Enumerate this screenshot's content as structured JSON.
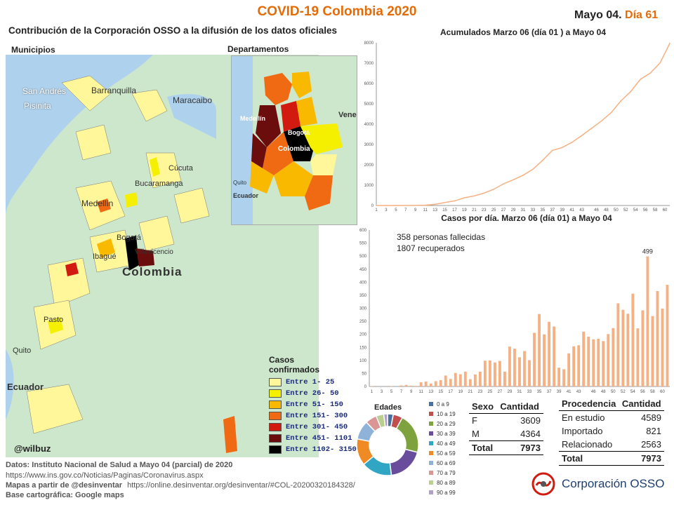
{
  "header": {
    "title": "COVID-19 Colombia 2020",
    "date_label": "Mayo 04.",
    "day_label": "Día 61",
    "subtitle": "Contribución de la Corporación OSSO a la difusión de los datos oficiales"
  },
  "maps": {
    "municipios_label": "Municipios",
    "departamentos_label": "Departamentos",
    "handle": "@wilbuz",
    "place_labels": [
      "San Andrés",
      "Pisinita",
      "Barranquilla",
      "Maracaibo",
      "Medellín",
      "Bogotá",
      "Colombia",
      "Quito",
      "Ecuador",
      "Pasto",
      "Ibagué",
      "Villavicencio",
      "Bucaramanga",
      "Cúcuta"
    ],
    "dept_labels": [
      "Medellín",
      "Bogotá",
      "Colombia",
      "Quito",
      "Ecuador",
      "Vene"
    ],
    "legend_title_1": "Casos",
    "legend_title_2": "confirmados",
    "legend": [
      {
        "label": "Entre 1- 25",
        "color": "#fff79a"
      },
      {
        "label": "Entre 26- 50",
        "color": "#f5f000"
      },
      {
        "label": "Entre 51- 150",
        "color": "#f9b900"
      },
      {
        "label": "Entre 151- 300",
        "color": "#ef6a13"
      },
      {
        "label": "Entre 301- 450",
        "color": "#d11a10"
      },
      {
        "label": "Entre 451- 1101",
        "color": "#6b0d0d"
      },
      {
        "label": "Entre 1102- 3150",
        "color": "#000000"
      }
    ]
  },
  "chart_data": [
    {
      "type": "line",
      "title": "Acumulados  Marzo 06 (día 01 ) a Mayo 04",
      "x": [
        1,
        3,
        5,
        7,
        9,
        11,
        13,
        15,
        17,
        19,
        21,
        23,
        25,
        27,
        29,
        31,
        33,
        35,
        37,
        39,
        41,
        43,
        45,
        47,
        49,
        51,
        53,
        55,
        57,
        59,
        61
      ],
      "y": [
        1,
        1,
        2,
        4,
        9,
        16,
        57,
        145,
        227,
        378,
        470,
        608,
        798,
        1065,
        1267,
        1485,
        1780,
        2223,
        2709,
        2852,
        3105,
        3439,
        3792,
        4149,
        4561,
        5142,
        5597,
        6207,
        6507,
        7006,
        7973
      ],
      "ylim": [
        0,
        8000
      ],
      "yticks": [
        0,
        1000,
        2000,
        3000,
        4000,
        5000,
        6000,
        7000,
        8000
      ],
      "xticks": [
        1,
        3,
        5,
        7,
        9,
        11,
        13,
        15,
        17,
        19,
        21,
        23,
        25,
        27,
        29,
        31,
        33,
        35,
        37,
        39,
        41,
        43,
        46,
        48,
        50,
        52,
        54,
        56,
        58,
        60
      ],
      "color": "#f5b183"
    },
    {
      "type": "bar",
      "title": "Casos por día. Marzo 06 (día 01) a Mayo 04",
      "x": [
        1,
        2,
        3,
        4,
        5,
        6,
        7,
        8,
        9,
        10,
        11,
        12,
        13,
        14,
        15,
        16,
        17,
        18,
        19,
        20,
        21,
        22,
        23,
        24,
        25,
        26,
        27,
        28,
        29,
        30,
        31,
        32,
        33,
        34,
        35,
        36,
        37,
        38,
        39,
        40,
        41,
        42,
        43,
        44,
        45,
        46,
        47,
        48,
        49,
        50,
        51,
        52,
        53,
        54,
        55,
        56,
        57,
        58,
        59,
        60,
        61
      ],
      "values": [
        1,
        0,
        0,
        0,
        1,
        0,
        4,
        6,
        3,
        2,
        16,
        19,
        11,
        20,
        24,
        42,
        29,
        52,
        47,
        57,
        28,
        46,
        57,
        99,
        100,
        92,
        98,
        57,
        153,
        145,
        112,
        136,
        101,
        206,
        278,
        200,
        248,
        230,
        72,
        66,
        127,
        154,
        158,
        210,
        191,
        181,
        183,
        174,
        201,
        224,
        319,
        294,
        279,
        356,
        223,
        292,
        499,
        270,
        366,
        299,
        390
      ],
      "ylim": [
        0,
        600
      ],
      "yticks": [
        0,
        50,
        100,
        150,
        200,
        250,
        300,
        350,
        400,
        450,
        500,
        550,
        600
      ],
      "xticks": [
        1,
        3,
        5,
        7,
        9,
        11,
        13,
        15,
        17,
        19,
        21,
        23,
        25,
        27,
        29,
        31,
        33,
        35,
        37,
        39,
        41,
        43,
        46,
        48,
        50,
        52,
        54,
        56,
        58,
        60
      ],
      "annotation_peak": "499",
      "deaths_text": "358 personas fallecidas",
      "recovered_text": "1807 recuperados",
      "color": "#f5b183"
    },
    {
      "type": "pie",
      "title": "Edades",
      "categories": [
        "0 a 9",
        "10 a 19",
        "20 a 29",
        "30 a 39",
        "40 a 49",
        "50 a 59",
        "60 a 69",
        "70 a 79",
        "80 a 89",
        "90 a 99"
      ],
      "values": [
        3,
        5,
        21,
        19,
        16,
        14,
        10,
        6,
        4,
        2
      ],
      "colors": [
        "#4a6fa5",
        "#c0504d",
        "#7ea33e",
        "#6a4c9c",
        "#31a6c4",
        "#f08a24",
        "#8fb2d9",
        "#d99694",
        "#b8cf8e",
        "#b1a0c7"
      ]
    }
  ],
  "sexo_table": {
    "headers": [
      "Sexo",
      "Cantidad"
    ],
    "rows": [
      [
        "F",
        "3609"
      ],
      [
        "M",
        "4364"
      ]
    ],
    "total": [
      "Total",
      "7973"
    ]
  },
  "procedencia_table": {
    "headers": [
      "Procedencia",
      "Cantidad"
    ],
    "rows": [
      [
        "En estudio",
        "4589"
      ],
      [
        "Importado",
        "821"
      ],
      [
        "Relacionado",
        "2563"
      ]
    ],
    "total": [
      "Total",
      "7973"
    ]
  },
  "footer": {
    "datos": "Datos: Instituto Nacional de Salud a Mayo 04  (parcial) de 2020",
    "datos_url": "https://www.ins.gov.co/Noticias/Paginas/Coronavirus.aspx",
    "mapas": "Mapas a partir de @desinventar",
    "mapas_url": "https://online.desinventar.org/desinventar/#COL-20200320184328/",
    "base": "Base cartográfica: Google  maps",
    "logo_text": "Corporación OSSO"
  }
}
